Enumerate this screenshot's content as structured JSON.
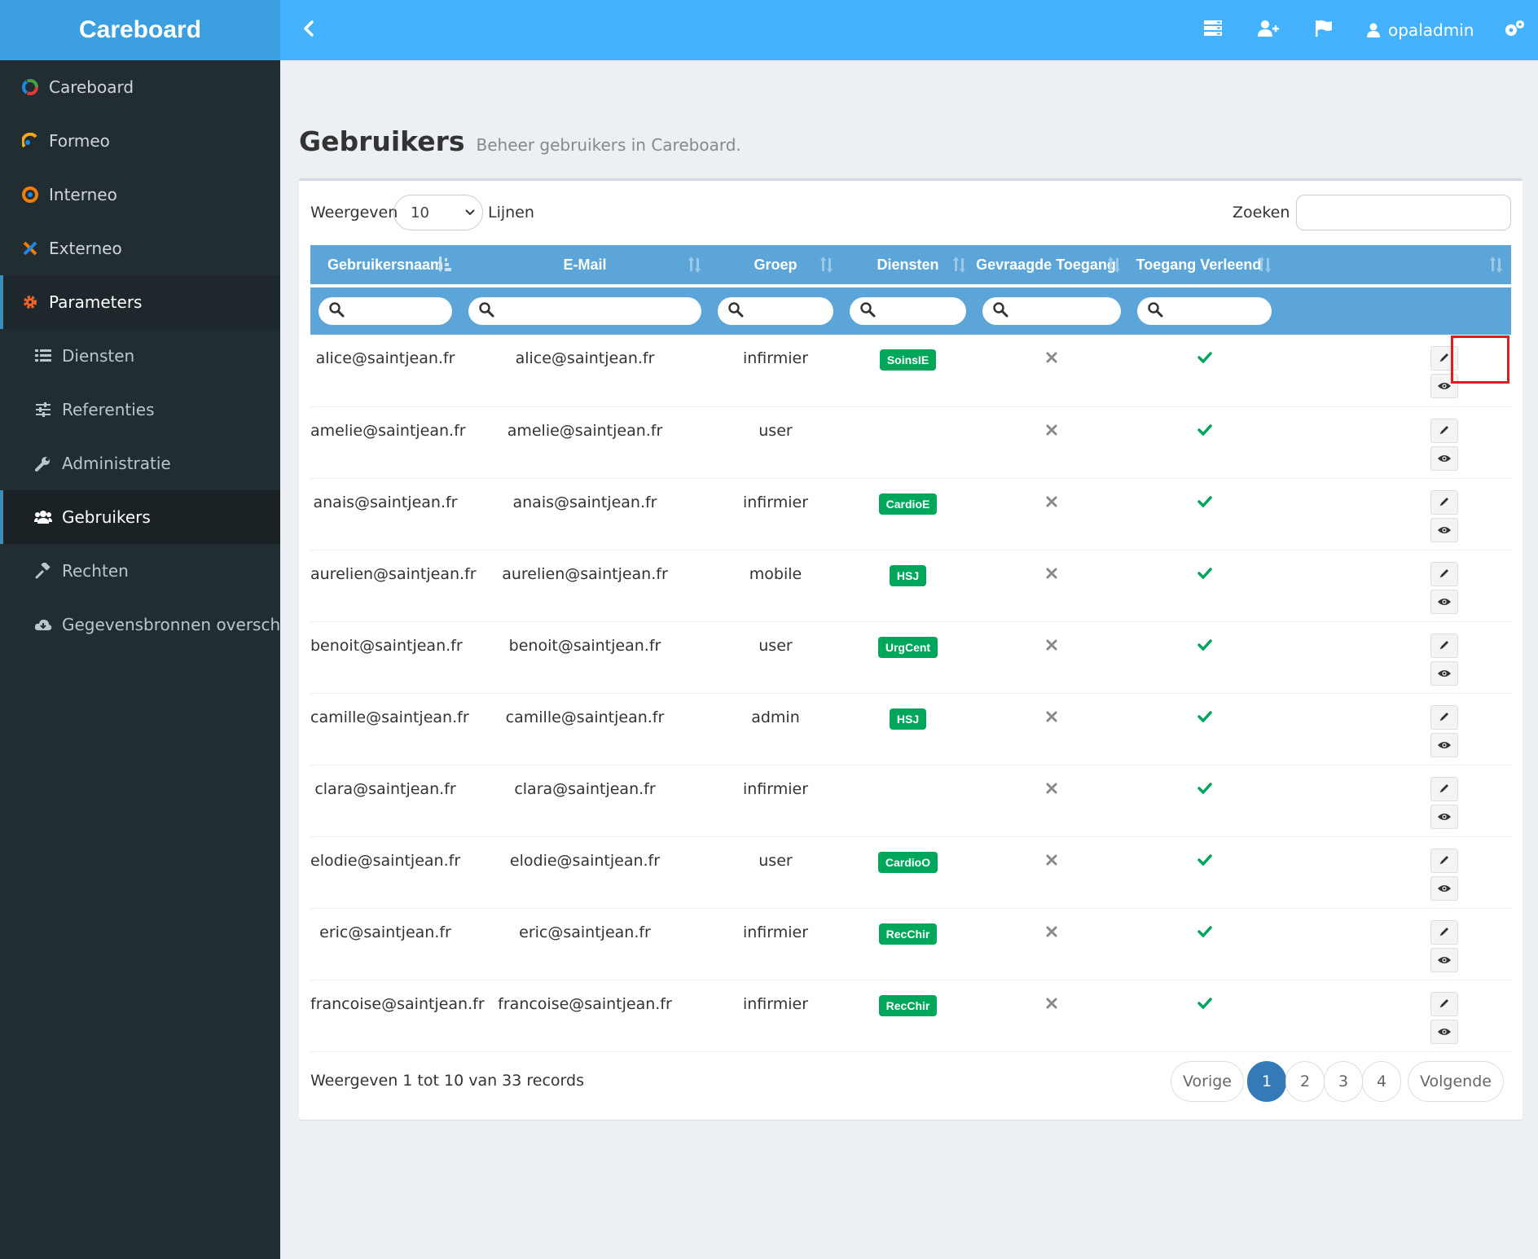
{
  "brand": "Careboard",
  "user": {
    "name": "opaladmin"
  },
  "sidebar": {
    "items": [
      {
        "label": "Careboard",
        "icon": "careboard-logo-icon"
      },
      {
        "label": "Formeo",
        "icon": "formeo-logo-icon"
      },
      {
        "label": "Interneo",
        "icon": "interneo-logo-icon"
      },
      {
        "label": "Externeo",
        "icon": "externeo-logo-icon"
      },
      {
        "label": "Parameters",
        "icon": "gear-icon"
      },
      {
        "label": "Diensten",
        "icon": "list-icon"
      },
      {
        "label": "Referenties",
        "icon": "sliders-icon"
      },
      {
        "label": "Administratie",
        "icon": "wrench-icon"
      },
      {
        "label": "Gebruikers",
        "icon": "users-icon"
      },
      {
        "label": "Rechten",
        "icon": "gavel-icon"
      },
      {
        "label": "Gegevensbronnen overschrijven",
        "icon": "cloud-download-icon"
      }
    ]
  },
  "page": {
    "title": "Gebruikers",
    "subtitle": "Beheer gebruikers in Careboard."
  },
  "controls": {
    "show_label": "Weergeven",
    "length_value": "10",
    "lines_label": "Lijnen",
    "search_label": "Zoeken",
    "search_value": ""
  },
  "table": {
    "headers": [
      "Gebruikersnaam",
      "E-Mail",
      "Groep",
      "Diensten",
      "Gevraagde Toegang",
      "Toegang Verleend",
      ""
    ],
    "rows": [
      {
        "username": "alice@saintjean.fr",
        "email": "alice@saintjean.fr",
        "group": "infirmier",
        "service": "SoinsIE"
      },
      {
        "username": "amelie@saintjean.fr",
        "email": "amelie@saintjean.fr",
        "group": "user",
        "service": ""
      },
      {
        "username": "anais@saintjean.fr",
        "email": "anais@saintjean.fr",
        "group": "infirmier",
        "service": "CardioE"
      },
      {
        "username": "aurelien@saintjean.fr",
        "email": "aurelien@saintjean.fr",
        "group": "mobile",
        "service": "HSJ"
      },
      {
        "username": "benoit@saintjean.fr",
        "email": "benoit@saintjean.fr",
        "group": "user",
        "service": "UrgCent"
      },
      {
        "username": "camille@saintjean.fr",
        "email": "camille@saintjean.fr",
        "group": "admin",
        "service": "HSJ"
      },
      {
        "username": "clara@saintjean.fr",
        "email": "clara@saintjean.fr",
        "group": "infirmier",
        "service": ""
      },
      {
        "username": "elodie@saintjean.fr",
        "email": "elodie@saintjean.fr",
        "group": "user",
        "service": "CardioO"
      },
      {
        "username": "eric@saintjean.fr",
        "email": "eric@saintjean.fr",
        "group": "infirmier",
        "service": "RecChir"
      },
      {
        "username": "francoise@saintjean.fr",
        "email": "francoise@saintjean.fr",
        "group": "infirmier",
        "service": "RecChir"
      }
    ]
  },
  "footer": {
    "info": "Weergeven 1 tot 10 van 33 records",
    "prev": "Vorige",
    "next": "Volgende",
    "pages": [
      "1",
      "2",
      "3",
      "4"
    ],
    "current_page": "1"
  },
  "colors": {
    "topbar": "#45b2ff",
    "brand": "#3b9fe0",
    "sidebar": "#222d32",
    "table_header": "#5ba5d9",
    "badge": "#00a65a",
    "check": "#00a65a",
    "highlight": "#e21b23"
  }
}
